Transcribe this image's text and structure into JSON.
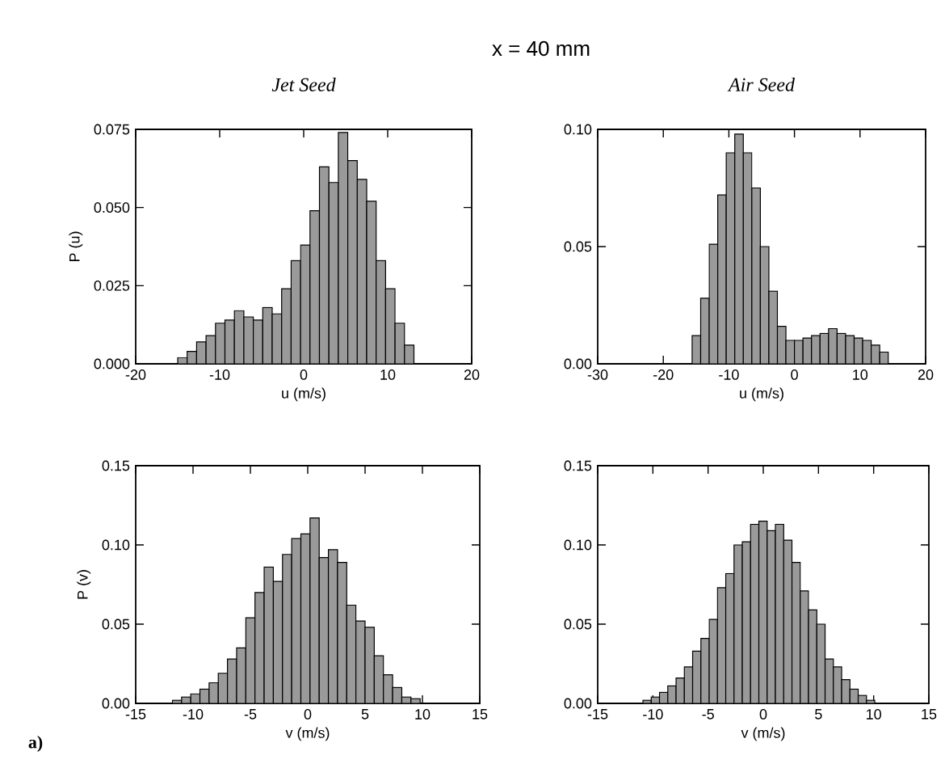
{
  "chart_data": [
    {
      "type": "histogram",
      "title": "Jet Seed",
      "xlabel": "u (m/s)",
      "ylabel": "P (u)",
      "annotations": [
        "x = 40 mm"
      ],
      "color": "#9a9a9a",
      "bins": [
        -15,
        -13.875,
        -12.75,
        -11.625,
        -10.5,
        -9.375,
        -8.25,
        -7.125,
        -6,
        -4.875,
        -3.75,
        -2.625,
        -1.5,
        -0.375,
        0.75,
        1.875,
        3,
        4.125,
        5.25,
        6.375,
        7.5,
        8.625,
        9.75,
        10.875,
        12,
        13.125
      ],
      "values": [
        0.002,
        0.004,
        0.007,
        0.009,
        0.013,
        0.014,
        0.017,
        0.015,
        0.014,
        0.018,
        0.016,
        0.024,
        0.033,
        0.038,
        0.049,
        0.063,
        0.058,
        0.074,
        0.065,
        0.059,
        0.052,
        0.033,
        0.024,
        0.013,
        0.006
      ],
      "xlim": [
        -20,
        20
      ],
      "ylim": [
        0,
        0.075
      ],
      "xticks": [
        -20,
        -10,
        0,
        10,
        20
      ],
      "yticks": [
        {
          "value": 0,
          "label": "0.000"
        },
        {
          "value": 0.025,
          "label": "0.025"
        },
        {
          "value": 0.05,
          "label": "0.050"
        },
        {
          "value": 0.075,
          "label": "0.075"
        }
      ]
    },
    {
      "type": "histogram",
      "title": "Air Seed",
      "xlabel": "u (m/s)",
      "color": "#9a9a9a",
      "bins": [
        -15.6,
        -14.3,
        -13,
        -11.7,
        -10.4,
        -9.1,
        -7.8,
        -6.5,
        -5.2,
        -3.9,
        -2.6,
        -1.3,
        0,
        1.3,
        2.6,
        3.9,
        5.2,
        6.5,
        7.8,
        9.1,
        10.4,
        11.7,
        13,
        14.3
      ],
      "values": [
        0.012,
        0.028,
        0.051,
        0.072,
        0.09,
        0.098,
        0.09,
        0.075,
        0.05,
        0.031,
        0.016,
        0.01,
        0.01,
        0.011,
        0.012,
        0.013,
        0.015,
        0.013,
        0.012,
        0.011,
        0.01,
        0.008,
        0.005
      ],
      "xlim": [
        -30,
        20
      ],
      "ylim": [
        0,
        0.1
      ],
      "xticks": [
        -30,
        -20,
        -10,
        0,
        10,
        20
      ],
      "yticks": [
        {
          "value": 0,
          "label": "0.00"
        },
        {
          "value": 0.05,
          "label": "0.05"
        },
        {
          "value": 0.1,
          "label": "0.10"
        }
      ]
    },
    {
      "type": "histogram",
      "xlabel": "v (m/s)",
      "ylabel": "P (v)",
      "annotations": [
        "a)"
      ],
      "color": "#9a9a9a",
      "bins": [
        -11.8,
        -11,
        -10.2,
        -9.4,
        -8.6,
        -7.8,
        -7,
        -6.2,
        -5.4,
        -4.6,
        -3.8,
        -3,
        -2.2,
        -1.4,
        -0.6,
        0.2,
        1,
        1.8,
        2.6,
        3.4,
        4.2,
        5,
        5.8,
        6.6,
        7.4,
        8.2,
        9,
        9.8
      ],
      "values": [
        0.002,
        0.004,
        0.006,
        0.009,
        0.013,
        0.019,
        0.028,
        0.035,
        0.054,
        0.07,
        0.086,
        0.077,
        0.094,
        0.104,
        0.107,
        0.117,
        0.092,
        0.097,
        0.089,
        0.062,
        0.052,
        0.048,
        0.03,
        0.018,
        0.01,
        0.004,
        0.003
      ],
      "xlim": [
        -15,
        15
      ],
      "ylim": [
        0,
        0.15
      ],
      "xticks": [
        -15,
        -10,
        -5,
        0,
        5,
        10,
        15
      ],
      "yticks": [
        {
          "value": 0,
          "label": "0.00"
        },
        {
          "value": 0.05,
          "label": "0.05"
        },
        {
          "value": 0.1,
          "label": "0.10"
        },
        {
          "value": 0.15,
          "label": "0.15"
        }
      ]
    },
    {
      "type": "histogram",
      "xlabel": "v (m/s)",
      "color": "#9a9a9a",
      "bins": [
        -10.9,
        -10.15,
        -9.4,
        -8.65,
        -7.9,
        -7.15,
        -6.4,
        -5.65,
        -4.9,
        -4.15,
        -3.4,
        -2.65,
        -1.9,
        -1.15,
        -0.4,
        0.35,
        1.1,
        1.85,
        2.6,
        3.35,
        4.1,
        4.85,
        5.6,
        6.35,
        7.1,
        7.85,
        8.6,
        9.35,
        10.1
      ],
      "values": [
        0.002,
        0.004,
        0.007,
        0.011,
        0.016,
        0.023,
        0.033,
        0.041,
        0.053,
        0.073,
        0.082,
        0.1,
        0.102,
        0.113,
        0.115,
        0.109,
        0.113,
        0.103,
        0.089,
        0.071,
        0.059,
        0.05,
        0.028,
        0.023,
        0.015,
        0.009,
        0.005,
        0.002
      ],
      "xlim": [
        -15,
        15
      ],
      "ylim": [
        0,
        0.15
      ],
      "xticks": [
        -15,
        -10,
        -5,
        0,
        5,
        10,
        15
      ],
      "yticks": [
        {
          "value": 0,
          "label": "0.00"
        },
        {
          "value": 0.05,
          "label": "0.05"
        },
        {
          "value": 0.1,
          "label": "0.10"
        },
        {
          "value": 0.15,
          "label": "0.15"
        }
      ]
    }
  ]
}
